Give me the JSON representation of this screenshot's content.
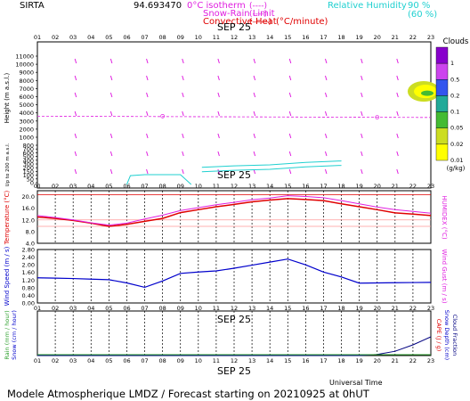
{
  "header": {
    "site": "SIRTA",
    "coords": "94.693470",
    "legend_items": [
      {
        "label": "0°C isotherm",
        "swatch": "(----)",
        "color": "#e020e0"
      },
      {
        "label": "Snow-Rain Limit",
        "swatch": "(----)",
        "color": "#e020e0"
      },
      {
        "label": "Convective Heat",
        "swatch": "(——)",
        "color": "#e00000"
      },
      {
        "label": "(°C/minute)",
        "swatch": "",
        "color": "#e00000"
      }
    ],
    "rh_label": "Relative Humidity",
    "rh_levels": [
      "90 %",
      "(60 %)"
    ],
    "rh_color": "#20d0d0"
  },
  "hours": [
    "01",
    "02",
    "03",
    "04",
    "05",
    "06",
    "07",
    "08",
    "09",
    "10",
    "11",
    "12",
    "13",
    "14",
    "15",
    "16",
    "17",
    "18",
    "19",
    "20",
    "21",
    "22",
    "23"
  ],
  "date_label": "SEP 25",
  "xlabel": "Universal Time",
  "footer": "Modele Atmospherique LMDZ / Forecast starting on 20210925 at 0hUT",
  "colors": {
    "magenta": "#e020e0",
    "red": "#e00000",
    "blue": "#0000cc",
    "cyan": "#20d0d0",
    "pink": "#ff9999",
    "green": "#2ca02c"
  },
  "chart_data": [
    {
      "type": "heatmap",
      "title": "",
      "ylabel": "Height (m a.s.l.)",
      "ylabel_low": "Up to 200 m a.s.l.",
      "yticks": [
        "11000",
        "10000",
        "9000",
        "8000",
        "7000",
        "6000",
        "5000",
        "4000",
        "3000",
        "2000",
        "1000",
        "800",
        "700",
        "600",
        "500",
        "400",
        "300",
        "200",
        "150",
        "100",
        "50",
        "0"
      ],
      "freezing_level_m": 3600,
      "cloud_label": "Clouds",
      "cloud_unit": "(g/kg)",
      "colorbar_levels": [
        "1",
        "0.5",
        "0.2",
        "0.1",
        "0.05",
        "0.02",
        "0.01"
      ],
      "colorbar_colors": [
        "#8800cc",
        "#cc44ee",
        "#3355ee",
        "#22aa99",
        "#44bb33",
        "#ccdd22",
        "#ffff00"
      ],
      "cloud_patch": {
        "hour_start": 22,
        "hour_end": 23,
        "height_bottom_m": 5600,
        "height_top_m": 7700,
        "max_g_per_kg": 0.01
      },
      "rh_contours": [
        {
          "hour": [
            6.0,
            6.2,
            7.0,
            9.0,
            9.6
          ],
          "height_m": [
            0,
            180,
            200,
            200,
            0
          ]
        },
        {
          "hour": [
            10.2,
            12.0,
            14.0,
            16.0,
            18.0
          ],
          "height_m": [
            350,
            380,
            400,
            450,
            480
          ]
        }
      ]
    },
    {
      "type": "line",
      "title": "",
      "ylabel": "Temperature (°C)",
      "ylabel_right": "HUMIDEX (°C)",
      "ylim": [
        4,
        22
      ],
      "yticks": [
        "4.0",
        "8.0",
        "12.0",
        "16.0",
        "20.0"
      ],
      "series": [
        {
          "name": "Temperature",
          "color": "#e00000",
          "values": [
            13.0,
            12.5,
            11.8,
            10.9,
            9.8,
            10.5,
            11.5,
            12.5,
            14.5,
            15.5,
            16.5,
            17.3,
            18.2,
            18.8,
            19.3,
            19.0,
            18.6,
            17.5,
            16.5,
            15.5,
            14.4,
            14.0,
            13.5
          ]
        },
        {
          "name": "Humidex",
          "color": "#e020e0",
          "values": [
            13.5,
            12.8,
            12.0,
            11.0,
            10.2,
            10.9,
            12.3,
            13.6,
            15.2,
            16.2,
            17.2,
            18.0,
            18.9,
            19.5,
            20.3,
            20.0,
            19.6,
            18.6,
            17.5,
            16.4,
            15.5,
            14.9,
            14.3
          ]
        }
      ]
    },
    {
      "type": "line",
      "title": "",
      "ylabel": "Wind Speed (m / s)",
      "ylabel_right": "Wind Gust (m / s)",
      "ylim": [
        0,
        2.8
      ],
      "yticks": [
        "0.00",
        "0.40",
        "0.80",
        "1.20",
        "1.60",
        "2.00",
        "2.40",
        "2.80"
      ],
      "series": [
        {
          "name": "Wind Speed",
          "color": "#0000cc",
          "values": [
            1.32,
            1.3,
            1.28,
            1.25,
            1.22,
            1.05,
            0.82,
            1.15,
            1.55,
            1.62,
            1.68,
            1.82,
            1.98,
            2.14,
            2.3,
            2.0,
            1.62,
            1.36,
            1.04,
            1.05,
            1.06,
            1.07,
            1.08
          ]
        }
      ]
    },
    {
      "type": "line",
      "title": "",
      "ylabel": "Rain (mm / hour)",
      "ylabel_2": "Snow (cm / hour)",
      "ylabel_right": "CAPE (J / g)",
      "ylabel_right_2": "Snow Depth (cm)",
      "ylabel_right_3": "Cloud Fraction",
      "series": [
        {
          "name": "Cloud Fraction",
          "color": "#000080",
          "values": [
            0,
            0,
            0,
            0,
            0,
            0,
            0,
            0,
            0,
            0,
            0,
            0,
            0,
            0,
            0,
            0,
            0,
            0,
            0,
            0.02,
            0.08,
            0.2,
            0.35
          ]
        }
      ]
    }
  ]
}
